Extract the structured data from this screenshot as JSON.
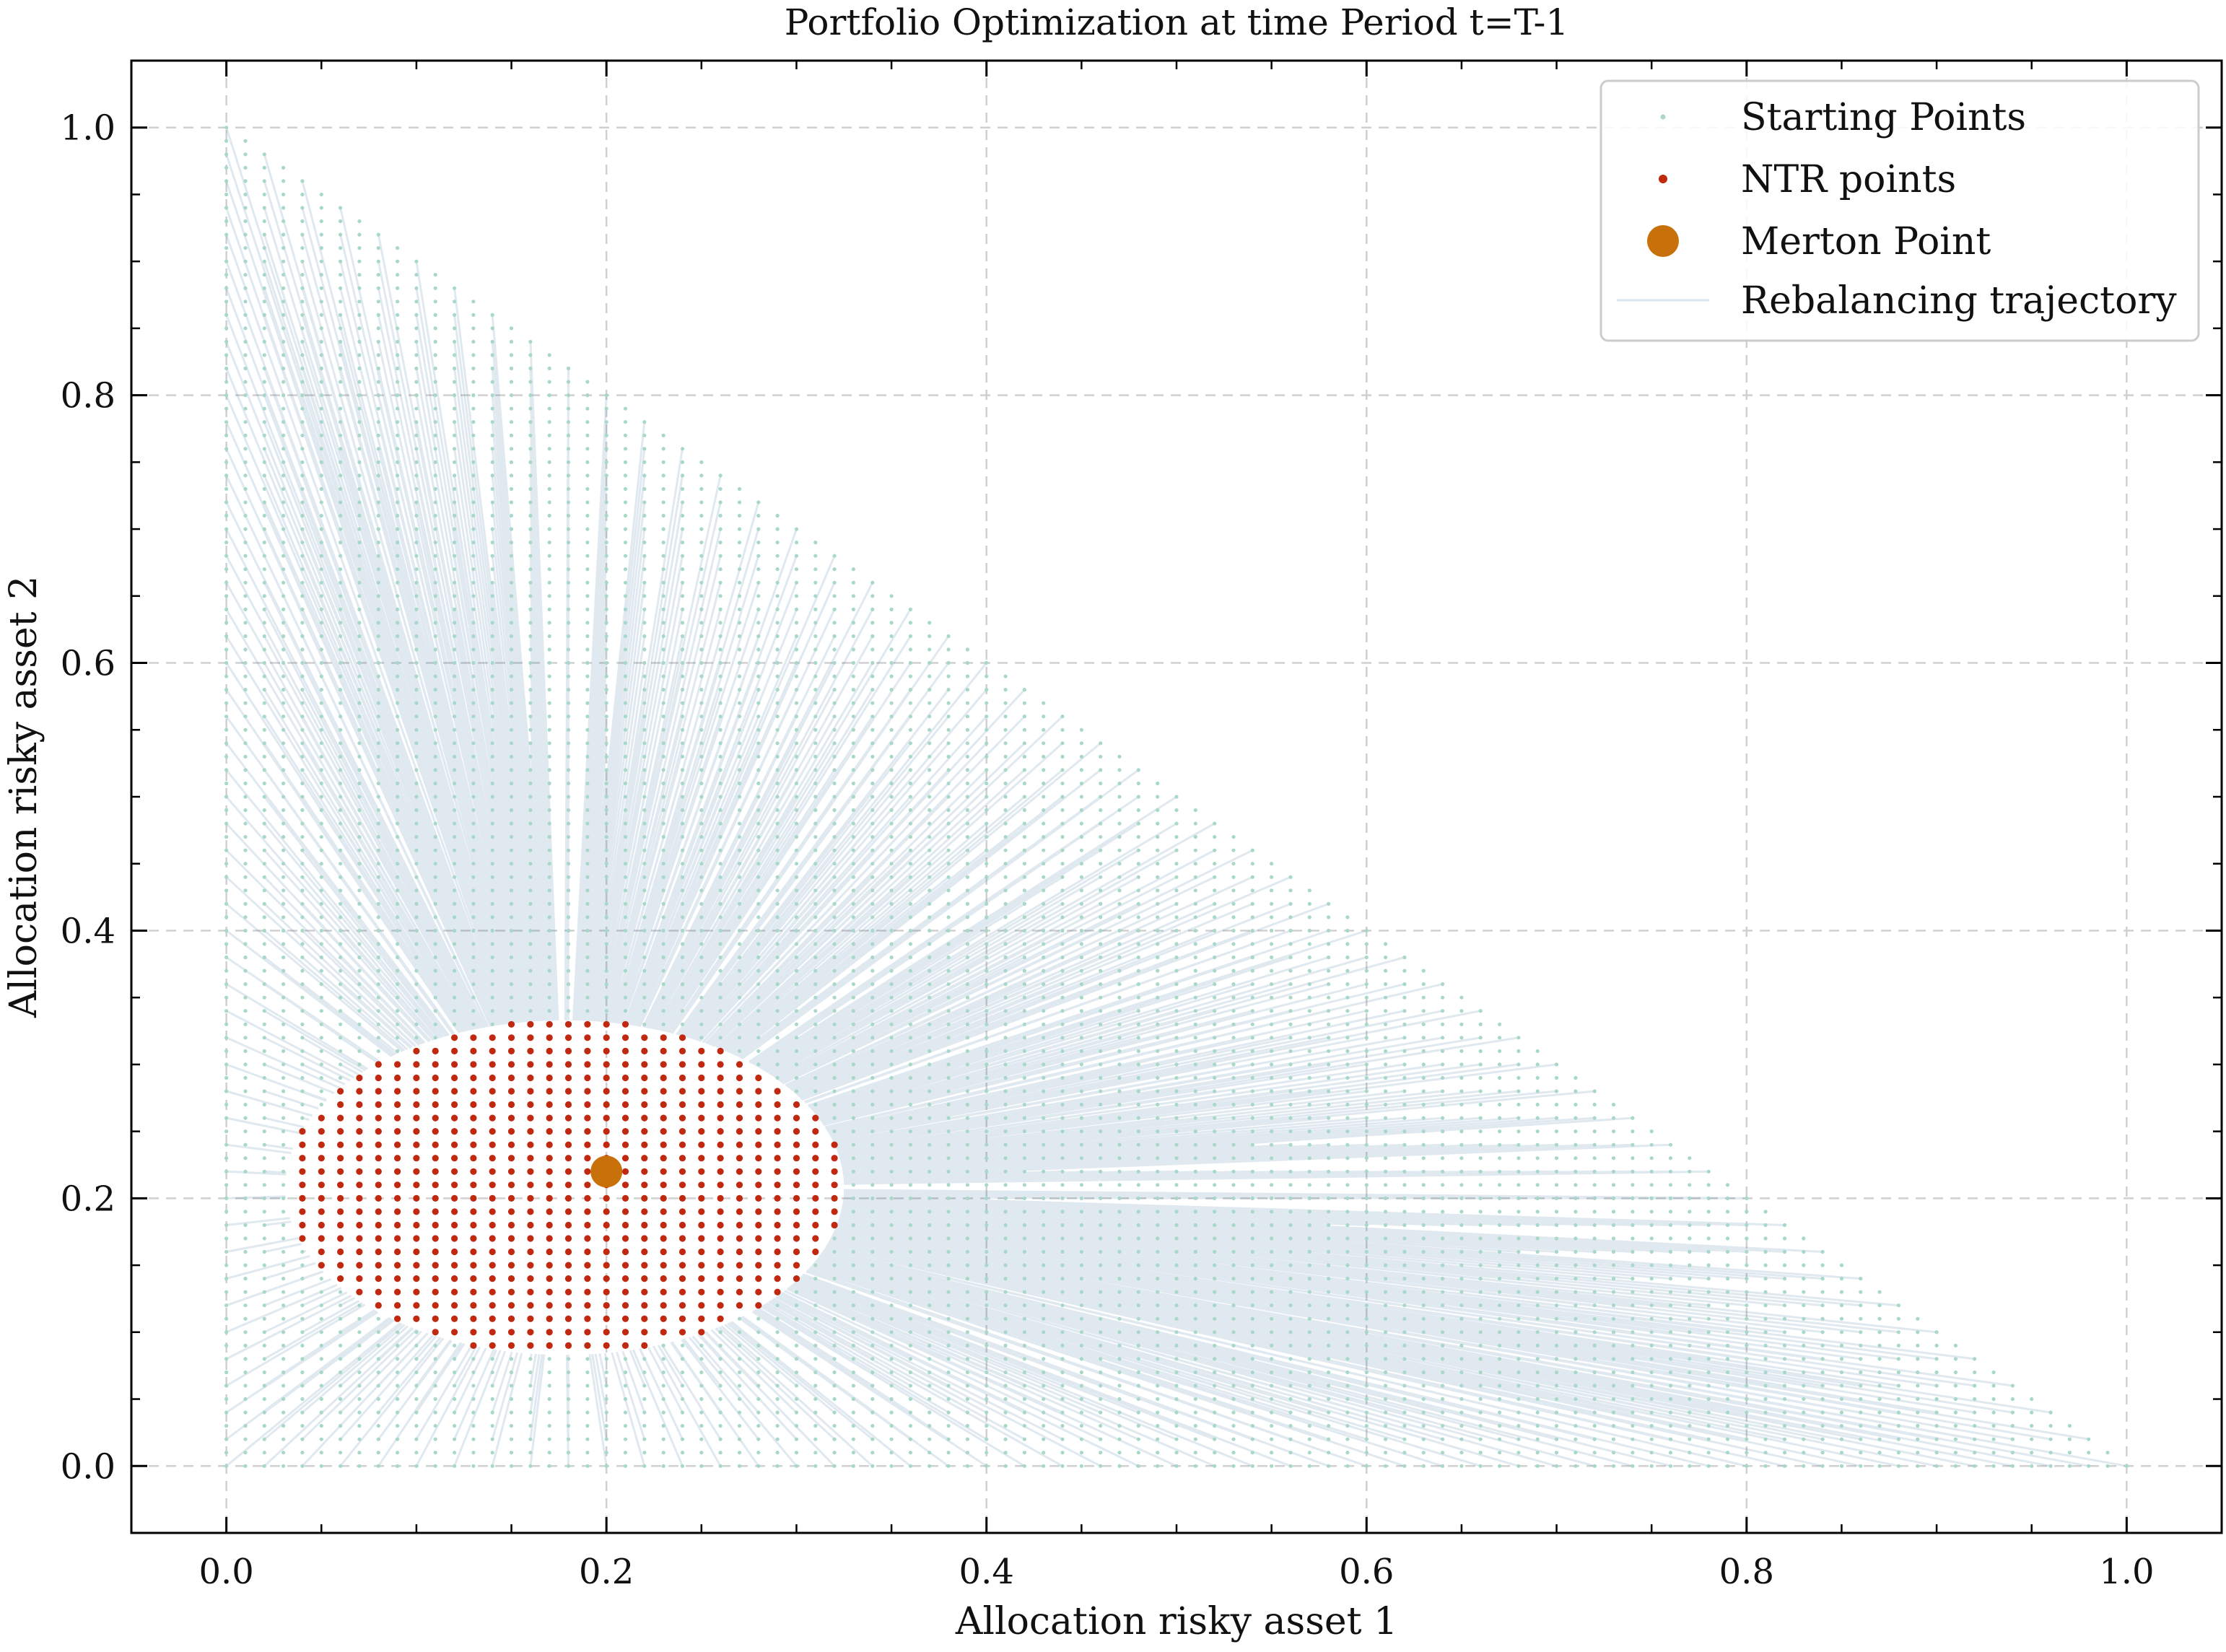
{
  "chart_data": {
    "type": "scatter",
    "title": "Portfolio Optimization at time Period t=T-1",
    "xlabel": "Allocation risky asset 1",
    "ylabel": "Allocation risky asset 2",
    "xlim": [
      -0.05,
      1.05
    ],
    "ylim": [
      -0.05,
      1.05
    ],
    "xticks": [
      0.0,
      0.2,
      0.4,
      0.6,
      0.8,
      1.0
    ],
    "yticks": [
      0.0,
      0.2,
      0.4,
      0.6,
      0.8,
      1.0
    ],
    "xtick_labels": [
      "0.0",
      "0.2",
      "0.4",
      "0.6",
      "0.8",
      "1.0"
    ],
    "ytick_labels": [
      "0.0",
      "0.2",
      "0.4",
      "0.6",
      "0.8",
      "1.0"
    ],
    "grid": true,
    "legend_position": "top-right",
    "legend": [
      "Starting Points",
      "NTR points",
      "Merton Point",
      "Rebalancing trajectory"
    ],
    "series": [
      {
        "name": "Starting Points",
        "kind": "grid-simplex",
        "grid_step": 0.01,
        "region": "x >= 0, y >= 0, x + y <= 1",
        "color": "#a8d8c8"
      },
      {
        "name": "NTR points",
        "kind": "ellipse-grid",
        "grid_step": 0.01,
        "region": "no-trade region, approximately an ellipse centered near (0.18, 0.21), x from 0.03 to 0.32, y from 0.08 to 0.33",
        "color": "#c0280f"
      },
      {
        "name": "Merton Point",
        "x": 0.2,
        "y": 0.22,
        "color": "#c8700a"
      },
      {
        "name": "Rebalancing trajectory",
        "kind": "lines from each starting point to nearest NTR boundary point",
        "color": "#0d4f8b"
      }
    ],
    "colors": {
      "starting_points": "#a8d8c8",
      "ntr_points": "#c0280f",
      "merton_point": "#c8700a",
      "trajectory": "#0d4f8b",
      "grid": "#d0d0d0"
    }
  }
}
